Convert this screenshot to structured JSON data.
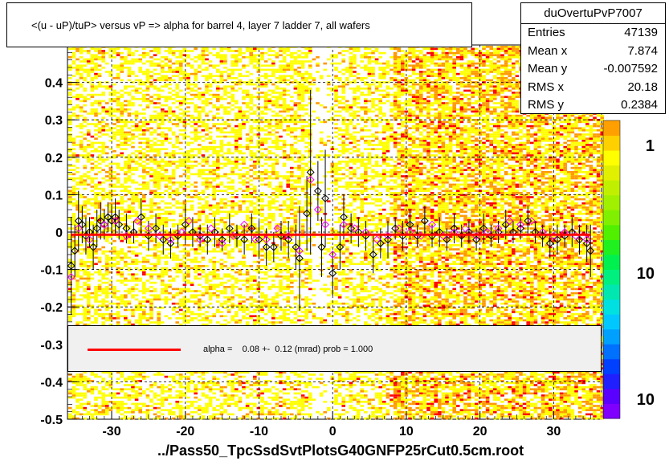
{
  "chart_data": {
    "type": "scatter",
    "title": "<(u - uP)/tuP> versus   vP => alpha for barrel 4, layer 7 ladder 7, all wafers",
    "xlim": [
      -36,
      36.5
    ],
    "ylim": [
      -0.5,
      0.5
    ],
    "x_ticks": [
      -30,
      -20,
      -10,
      0,
      10,
      20,
      30
    ],
    "y_ticks": [
      -0.5,
      -0.4,
      -0.3,
      -0.2,
      -0.1,
      0,
      0.1,
      0.2,
      0.3,
      0.4
    ],
    "y_tick_labels": [
      "-0.5",
      "-0.4",
      "-0.3",
      "-0.2",
      "-0.1",
      "0",
      "0.1",
      "0.2",
      "0.3",
      "0.4"
    ],
    "grid": true,
    "colorbar": {
      "log_scale": true,
      "labels": [
        "1",
        "10",
        "10"
      ]
    },
    "background": "2D density histogram (yellow/orange/red) across full range",
    "profile_black_markers": [
      {
        "x": -35.5,
        "y": -0.09,
        "err": 0.13
      },
      {
        "x": -35.0,
        "y": -0.05,
        "err": 0.07
      },
      {
        "x": -34.5,
        "y": 0.03,
        "err": 0.08
      },
      {
        "x": -34.0,
        "y": 0.02,
        "err": 0.05
      },
      {
        "x": -33.5,
        "y": -0.01,
        "err": 0.05
      },
      {
        "x": -33.0,
        "y": 0.0,
        "err": 0.04
      },
      {
        "x": -32.5,
        "y": -0.04,
        "err": 0.06
      },
      {
        "x": -32.0,
        "y": 0.01,
        "err": 0.05
      },
      {
        "x": -31.5,
        "y": 0.03,
        "err": 0.05
      },
      {
        "x": -31.0,
        "y": 0.02,
        "err": 0.04
      },
      {
        "x": -30.5,
        "y": 0.04,
        "err": 0.04
      },
      {
        "x": -30.0,
        "y": 0.03,
        "err": 0.04
      },
      {
        "x": -29.5,
        "y": 0.04,
        "err": 0.05
      },
      {
        "x": -29.0,
        "y": 0.02,
        "err": 0.04
      },
      {
        "x": -28.0,
        "y": 0.01,
        "err": 0.04
      },
      {
        "x": -27.0,
        "y": 0.0,
        "err": 0.03
      },
      {
        "x": -26.0,
        "y": 0.04,
        "err": 0.05
      },
      {
        "x": -25.0,
        "y": -0.01,
        "err": 0.04
      },
      {
        "x": -24.0,
        "y": 0.01,
        "err": 0.04
      },
      {
        "x": -23.0,
        "y": -0.02,
        "err": 0.04
      },
      {
        "x": -22.0,
        "y": -0.03,
        "err": 0.04
      },
      {
        "x": -21.0,
        "y": -0.01,
        "err": 0.03
      },
      {
        "x": -20.0,
        "y": 0.02,
        "err": 0.05
      },
      {
        "x": -19.0,
        "y": 0.0,
        "err": 0.04
      },
      {
        "x": -18.0,
        "y": -0.01,
        "err": 0.03
      },
      {
        "x": -17.0,
        "y": -0.02,
        "err": 0.04
      },
      {
        "x": -16.0,
        "y": 0.0,
        "err": 0.04
      },
      {
        "x": -15.0,
        "y": -0.02,
        "err": 0.03
      },
      {
        "x": -14.0,
        "y": 0.01,
        "err": 0.04
      },
      {
        "x": -13.0,
        "y": -0.01,
        "err": 0.03
      },
      {
        "x": -12.0,
        "y": -0.02,
        "err": 0.04
      },
      {
        "x": -11.0,
        "y": 0.01,
        "err": 0.04
      },
      {
        "x": -10.0,
        "y": -0.02,
        "err": 0.05
      },
      {
        "x": -9.0,
        "y": -0.04,
        "err": 0.05
      },
      {
        "x": -8.0,
        "y": -0.04,
        "err": 0.04
      },
      {
        "x": -7.0,
        "y": -0.01,
        "err": 0.04
      },
      {
        "x": -6.0,
        "y": -0.02,
        "err": 0.05
      },
      {
        "x": -5.0,
        "y": -0.04,
        "err": 0.06
      },
      {
        "x": -4.5,
        "y": -0.07,
        "err": 0.14
      },
      {
        "x": -3.5,
        "y": 0.05,
        "err": 0.1
      },
      {
        "x": -3.0,
        "y": 0.16,
        "err": 0.22
      },
      {
        "x": -2.0,
        "y": 0.11,
        "err": 0.08
      },
      {
        "x": -1.5,
        "y": -0.04,
        "err": 0.08
      },
      {
        "x": -1.0,
        "y": 0.09,
        "err": 0.13
      },
      {
        "x": 0.0,
        "y": -0.11,
        "err": 0.06
      },
      {
        "x": 1.0,
        "y": -0.04,
        "err": 0.06
      },
      {
        "x": 1.5,
        "y": 0.04,
        "err": 0.06
      },
      {
        "x": 2.5,
        "y": 0.01,
        "err": 0.04
      },
      {
        "x": 3.5,
        "y": 0.0,
        "err": 0.04
      },
      {
        "x": 4.5,
        "y": -0.01,
        "err": 0.04
      },
      {
        "x": 5.5,
        "y": -0.06,
        "err": 0.05
      },
      {
        "x": 6.5,
        "y": -0.03,
        "err": 0.04
      },
      {
        "x": 7.5,
        "y": -0.02,
        "err": 0.05
      },
      {
        "x": 8.5,
        "y": 0.01,
        "err": 0.03
      },
      {
        "x": 9.5,
        "y": -0.01,
        "err": 0.04
      },
      {
        "x": 10.5,
        "y": 0.02,
        "err": 0.04
      },
      {
        "x": 11.5,
        "y": -0.01,
        "err": 0.03
      },
      {
        "x": 12.5,
        "y": 0.03,
        "err": 0.04
      },
      {
        "x": 13.5,
        "y": -0.01,
        "err": 0.03
      },
      {
        "x": 14.5,
        "y": 0.0,
        "err": 0.04
      },
      {
        "x": 15.5,
        "y": -0.02,
        "err": 0.03
      },
      {
        "x": 16.5,
        "y": 0.01,
        "err": 0.04
      },
      {
        "x": 17.5,
        "y": -0.01,
        "err": 0.03
      },
      {
        "x": 18.5,
        "y": 0.0,
        "err": 0.03
      },
      {
        "x": 19.5,
        "y": -0.02,
        "err": 0.03
      },
      {
        "x": 20.5,
        "y": 0.01,
        "err": 0.04
      },
      {
        "x": 21.5,
        "y": -0.01,
        "err": 0.03
      },
      {
        "x": 22.5,
        "y": 0.0,
        "err": 0.03
      },
      {
        "x": 23.5,
        "y": 0.02,
        "err": 0.04
      },
      {
        "x": 24.5,
        "y": 0.0,
        "err": 0.03
      },
      {
        "x": 25.5,
        "y": 0.01,
        "err": 0.03
      },
      {
        "x": 26.5,
        "y": 0.03,
        "err": 0.04
      },
      {
        "x": 27.5,
        "y": 0.0,
        "err": 0.03
      },
      {
        "x": 28.5,
        "y": -0.01,
        "err": 0.03
      },
      {
        "x": 29.5,
        "y": -0.03,
        "err": 0.04
      },
      {
        "x": 30.5,
        "y": -0.02,
        "err": 0.04
      },
      {
        "x": 31.5,
        "y": -0.01,
        "err": 0.03
      },
      {
        "x": 32.5,
        "y": 0.0,
        "err": 0.04
      },
      {
        "x": 33.5,
        "y": -0.02,
        "err": 0.04
      },
      {
        "x": 34.5,
        "y": -0.03,
        "err": 0.05
      },
      {
        "x": 35.0,
        "y": -0.05,
        "err": 0.07
      }
    ],
    "profile_magenta_markers": [
      {
        "x": -35.5,
        "y": -0.12
      },
      {
        "x": -34.5,
        "y": 0.01
      },
      {
        "x": -33.0,
        "y": -0.02
      },
      {
        "x": -31.0,
        "y": 0.02
      },
      {
        "x": -29.5,
        "y": 0.03
      },
      {
        "x": -28.0,
        "y": -0.01
      },
      {
        "x": -26.5,
        "y": 0.03
      },
      {
        "x": -25.0,
        "y": 0.01
      },
      {
        "x": -23.5,
        "y": -0.01
      },
      {
        "x": -22.0,
        "y": -0.02
      },
      {
        "x": -20.5,
        "y": 0.0
      },
      {
        "x": -19.5,
        "y": 0.03
      },
      {
        "x": -18.0,
        "y": -0.02
      },
      {
        "x": -16.5,
        "y": 0.01
      },
      {
        "x": -15.0,
        "y": -0.03
      },
      {
        "x": -13.5,
        "y": -0.01
      },
      {
        "x": -12.0,
        "y": 0.02
      },
      {
        "x": -10.5,
        "y": -0.02
      },
      {
        "x": -9.0,
        "y": -0.02
      },
      {
        "x": -7.5,
        "y": 0.01
      },
      {
        "x": -6.0,
        "y": -0.01
      },
      {
        "x": -4.5,
        "y": -0.05
      },
      {
        "x": -3.0,
        "y": 0.14
      },
      {
        "x": -2.0,
        "y": 0.06
      },
      {
        "x": -1.0,
        "y": 0.02
      },
      {
        "x": 0.0,
        "y": -0.06
      },
      {
        "x": 1.5,
        "y": 0.02
      },
      {
        "x": 3.0,
        "y": 0.01
      },
      {
        "x": 4.5,
        "y": 0.0
      },
      {
        "x": 6.0,
        "y": -0.02
      },
      {
        "x": 7.5,
        "y": -0.01
      },
      {
        "x": 9.0,
        "y": 0.01
      },
      {
        "x": 10.5,
        "y": 0.0
      },
      {
        "x": 12.0,
        "y": -0.01
      },
      {
        "x": 13.5,
        "y": 0.02
      },
      {
        "x": 15.0,
        "y": -0.01
      },
      {
        "x": 16.5,
        "y": 0.0
      },
      {
        "x": 18.0,
        "y": 0.01
      },
      {
        "x": 19.5,
        "y": -0.01
      },
      {
        "x": 21.0,
        "y": 0.0
      },
      {
        "x": 22.5,
        "y": 0.01
      },
      {
        "x": 24.0,
        "y": 0.03
      },
      {
        "x": 25.5,
        "y": 0.02
      },
      {
        "x": 27.0,
        "y": 0.03
      },
      {
        "x": 28.5,
        "y": 0.0
      },
      {
        "x": 30.0,
        "y": -0.01
      },
      {
        "x": 31.5,
        "y": 0.0
      },
      {
        "x": 33.0,
        "y": -0.01
      },
      {
        "x": 34.5,
        "y": -0.02
      }
    ],
    "fit_line": {
      "x": [
        -35.5,
        35.0
      ],
      "y": [
        -0.007,
        -0.007
      ],
      "color": "#ff0000"
    }
  },
  "stats": {
    "name": "duOvertuPvP7007",
    "rows": [
      {
        "label": "Entries",
        "value": "47139"
      },
      {
        "label": "Mean x",
        "value": "7.874"
      },
      {
        "label": "Mean y",
        "value": "-0.007592"
      },
      {
        "label": "RMS x",
        "value": "20.18"
      },
      {
        "label": "RMS y",
        "value": "0.2384"
      }
    ]
  },
  "fit_legend": "alpha =    0.08 +-  0.12 (mrad) prob = 1.000",
  "footer": "../Pass50_TpcSsdSvtPlotsG40GNFP25rCut0.5cm.root",
  "colors": {
    "density_low": "#ffff00",
    "density_mid": "#ff9900",
    "density_high": "#ff0000",
    "marker_black": "#000000",
    "marker_magenta": "#ff00ff",
    "fit": "#ff0000",
    "fit_box_bg": "#f0f0f0"
  }
}
